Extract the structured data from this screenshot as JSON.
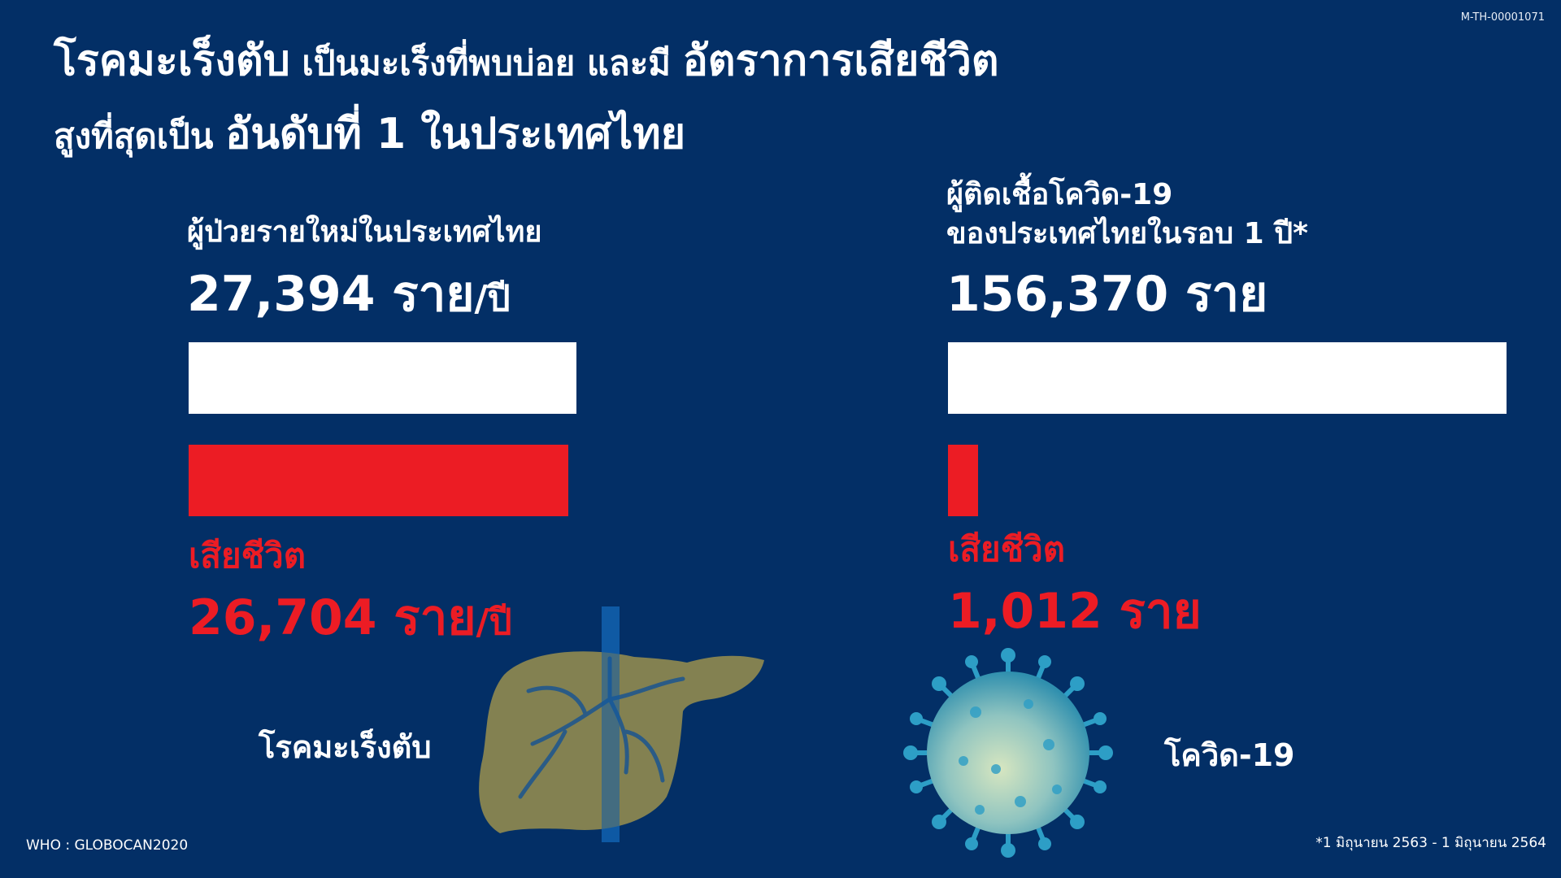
{
  "document_code": "M-TH-00001071",
  "headline": {
    "line1_part1": "โรคมะเร็งตับ",
    "line1_part2": " เป็นมะเร็งที่พบบ่อย และมี ",
    "line1_part3": "อัตราการเสียชีวิต",
    "line2_part1": "สูงที่สุดเป็น ",
    "line2_part2": "อันดับที่ 1 ในประเทศไทย"
  },
  "liver_cancer": {
    "new_cases_label": "ผู้ป่วยรายใหม่ในประเทศไทย",
    "new_cases_number": "27,394 ราย",
    "new_cases_unit": "/ปี",
    "new_cases_value": 27394,
    "deaths_label": "เสียชีวิต",
    "deaths_number": "26,704 ราย",
    "deaths_unit": "/ปี",
    "deaths_value": 26704,
    "caption": "โรคมะเร็งตับ",
    "icon": "liver-icon"
  },
  "covid": {
    "infected_label_line1": "ผู้ติดเชื้อโควิด-19",
    "infected_label_line2": "ของประเทศไทยในรอบ 1 ปี*",
    "infected_number": "156,370 ราย",
    "infected_value": 156370,
    "deaths_label": "เสียชีวิต",
    "deaths_number": "1,012 ราย",
    "deaths_value": 1012,
    "caption": "โควิด-19",
    "icon": "virus-icon"
  },
  "source": "WHO : GLOBOCAN2020",
  "footnote": "*1 มิถุนายน 2563 - 1 มิถุนายน 2564",
  "colors": {
    "background": "#032f66",
    "accent_red": "#ec1c24",
    "text": "#ffffff"
  }
}
